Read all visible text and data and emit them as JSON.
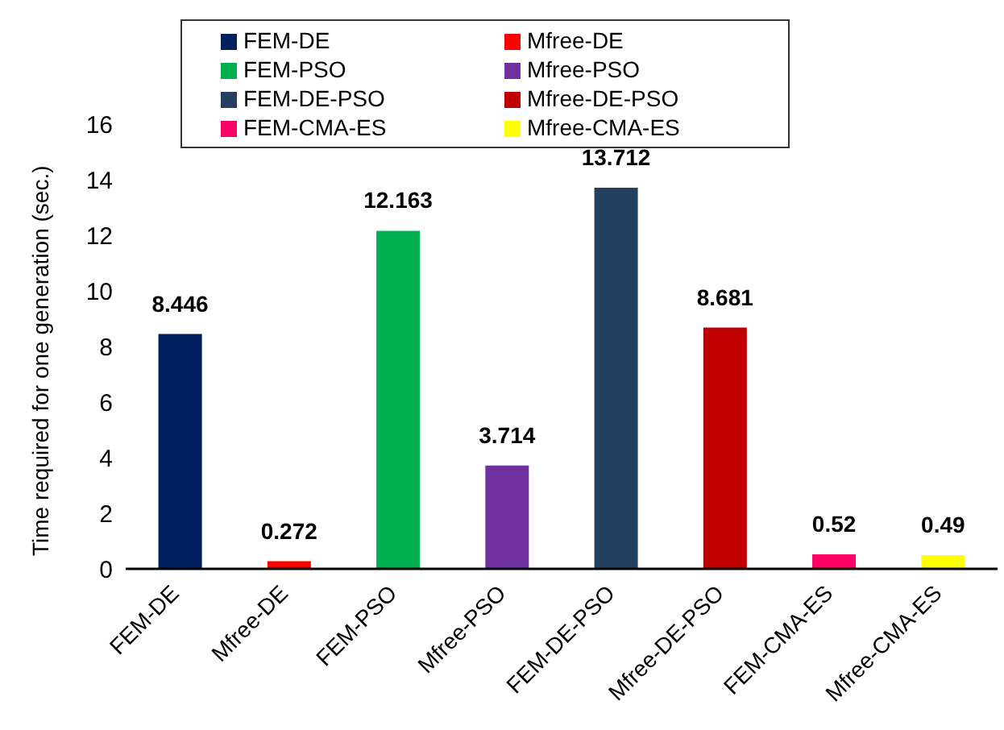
{
  "chart_data": {
    "type": "bar",
    "ylabel": "Time required for one generation (sec.)",
    "categories": [
      "FEM-DE",
      "Mfree-DE",
      "FEM-PSO",
      "Mfree-PSO",
      "FEM-DE-PSO",
      "Mfree-DE-PSO",
      "FEM-CMA-ES",
      "Mfree-CMA-ES"
    ],
    "series": [
      {
        "name": "FEM-DE",
        "color": "#001f5f",
        "values": [
          8.446,
          null,
          null,
          null,
          null,
          null,
          null,
          null
        ]
      },
      {
        "name": "Mfree-DE",
        "color": "#ff0000",
        "values": [
          null,
          0.272,
          null,
          null,
          null,
          null,
          null,
          null
        ]
      },
      {
        "name": "FEM-PSO",
        "color": "#00b050",
        "values": [
          null,
          null,
          12.163,
          null,
          null,
          null,
          null,
          null
        ]
      },
      {
        "name": "Mfree-PSO",
        "color": "#7030a0",
        "values": [
          null,
          null,
          null,
          3.714,
          null,
          null,
          null,
          null
        ]
      },
      {
        "name": "FEM-DE-PSO",
        "color": "#243f60",
        "values": [
          null,
          null,
          null,
          null,
          13.712,
          null,
          null,
          null
        ]
      },
      {
        "name": "Mfree-DE-PSO",
        "color": "#c00000",
        "values": [
          null,
          null,
          null,
          null,
          null,
          8.681,
          null,
          null
        ]
      },
      {
        "name": "FEM-CMA-ES",
        "color": "#ff0066",
        "values": [
          null,
          null,
          null,
          null,
          null,
          null,
          0.52,
          null
        ]
      },
      {
        "name": "Mfree-CMA-ES",
        "color": "#ffff00",
        "values": [
          null,
          null,
          null,
          null,
          null,
          null,
          null,
          0.49
        ]
      }
    ],
    "stacked": true,
    "ylim": [
      0,
      16
    ],
    "yticks": [
      0,
      2,
      4,
      6,
      8,
      10,
      12,
      14,
      16
    ],
    "data_labels": true,
    "legend": "top",
    "grid": false
  }
}
